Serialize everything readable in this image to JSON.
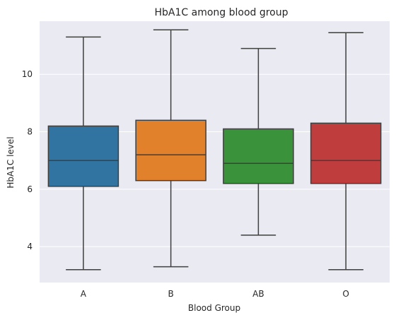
{
  "chart_data": {
    "type": "box",
    "title": "HbA1C among blood group",
    "xlabel": "Blood Group",
    "ylabel": "HbA1C level",
    "ylim": [
      2.75,
      11.85
    ],
    "yticks": [
      4,
      6,
      8,
      10
    ],
    "grid": true,
    "categories": [
      "A",
      "B",
      "AB",
      "O"
    ],
    "boxes": [
      {
        "category": "A",
        "whisker_low": 3.2,
        "q1": 6.1,
        "median": 7.0,
        "q3": 8.2,
        "whisker_high": 11.3,
        "color": "#3274a1"
      },
      {
        "category": "B",
        "whisker_low": 3.3,
        "q1": 6.3,
        "median": 7.2,
        "q3": 8.4,
        "whisker_high": 11.55,
        "color": "#e1812c"
      },
      {
        "category": "AB",
        "whisker_low": 4.4,
        "q1": 6.2,
        "median": 6.9,
        "q3": 8.1,
        "whisker_high": 10.9,
        "color": "#3a923a"
      },
      {
        "category": "O",
        "whisker_low": 3.2,
        "q1": 6.2,
        "median": 7.0,
        "q3": 8.3,
        "whisker_high": 11.45,
        "color": "#c03d3e"
      }
    ],
    "line_color": "#3f3f3f",
    "background_color": "#eaeaf2"
  }
}
